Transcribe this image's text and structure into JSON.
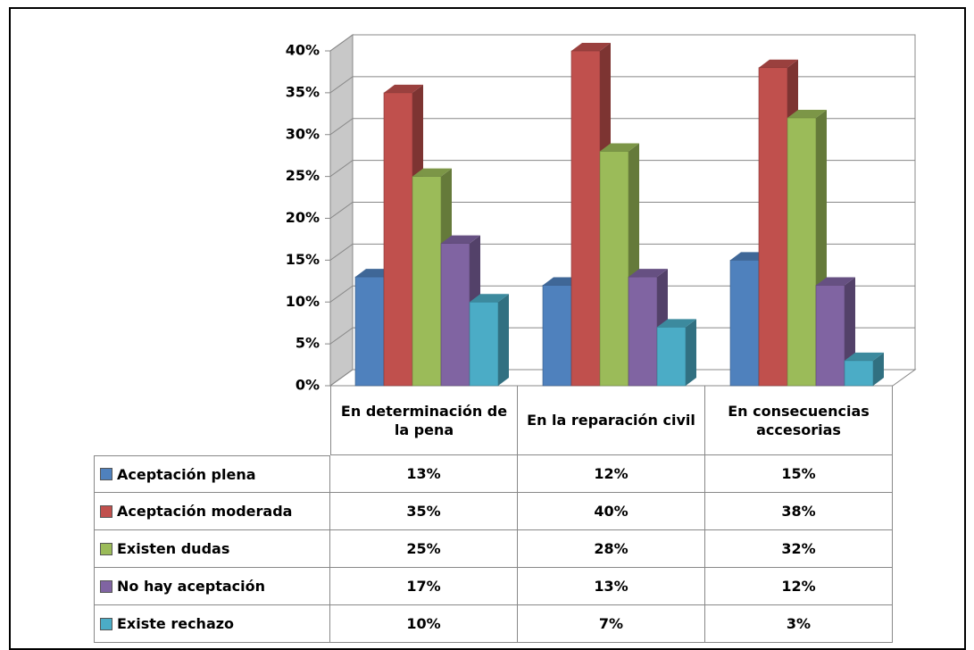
{
  "chart_data": {
    "type": "bar3d",
    "categories": [
      "En determinación de la pena",
      "En la reparación civil",
      "En consecuencias accesorias"
    ],
    "series": [
      {
        "name": "Aceptación plena",
        "color": "#4f81bd",
        "values": [
          13,
          12,
          15
        ],
        "value_labels": [
          "13%",
          "12%",
          "15%"
        ]
      },
      {
        "name": "Aceptación moderada",
        "color": "#c0504d",
        "values": [
          35,
          40,
          38
        ],
        "value_labels": [
          "35%",
          "40%",
          "38%"
        ]
      },
      {
        "name": "Existen dudas",
        "color": "#9bbb59",
        "values": [
          25,
          28,
          32
        ],
        "value_labels": [
          "25%",
          "28%",
          "32%"
        ]
      },
      {
        "name": "No hay aceptación",
        "color": "#8064a2",
        "values": [
          17,
          13,
          12
        ],
        "value_labels": [
          "17%",
          "13%",
          "12%"
        ]
      },
      {
        "name": "Existe rechazo",
        "color": "#4bacc6",
        "values": [
          10,
          7,
          3
        ],
        "value_labels": [
          "10%",
          "7%",
          "3%"
        ]
      }
    ],
    "ylim": [
      0,
      40
    ],
    "yticks": [
      {
        "value": 0,
        "label": "0%"
      },
      {
        "value": 5,
        "label": "5%"
      },
      {
        "value": 10,
        "label": "10%"
      },
      {
        "value": 15,
        "label": "15%"
      },
      {
        "value": 20,
        "label": "20%"
      },
      {
        "value": 25,
        "label": "25%"
      },
      {
        "value": 30,
        "label": "30%"
      },
      {
        "value": 35,
        "label": "35%"
      },
      {
        "value": 40,
        "label": "40%"
      }
    ],
    "grid": true
  }
}
